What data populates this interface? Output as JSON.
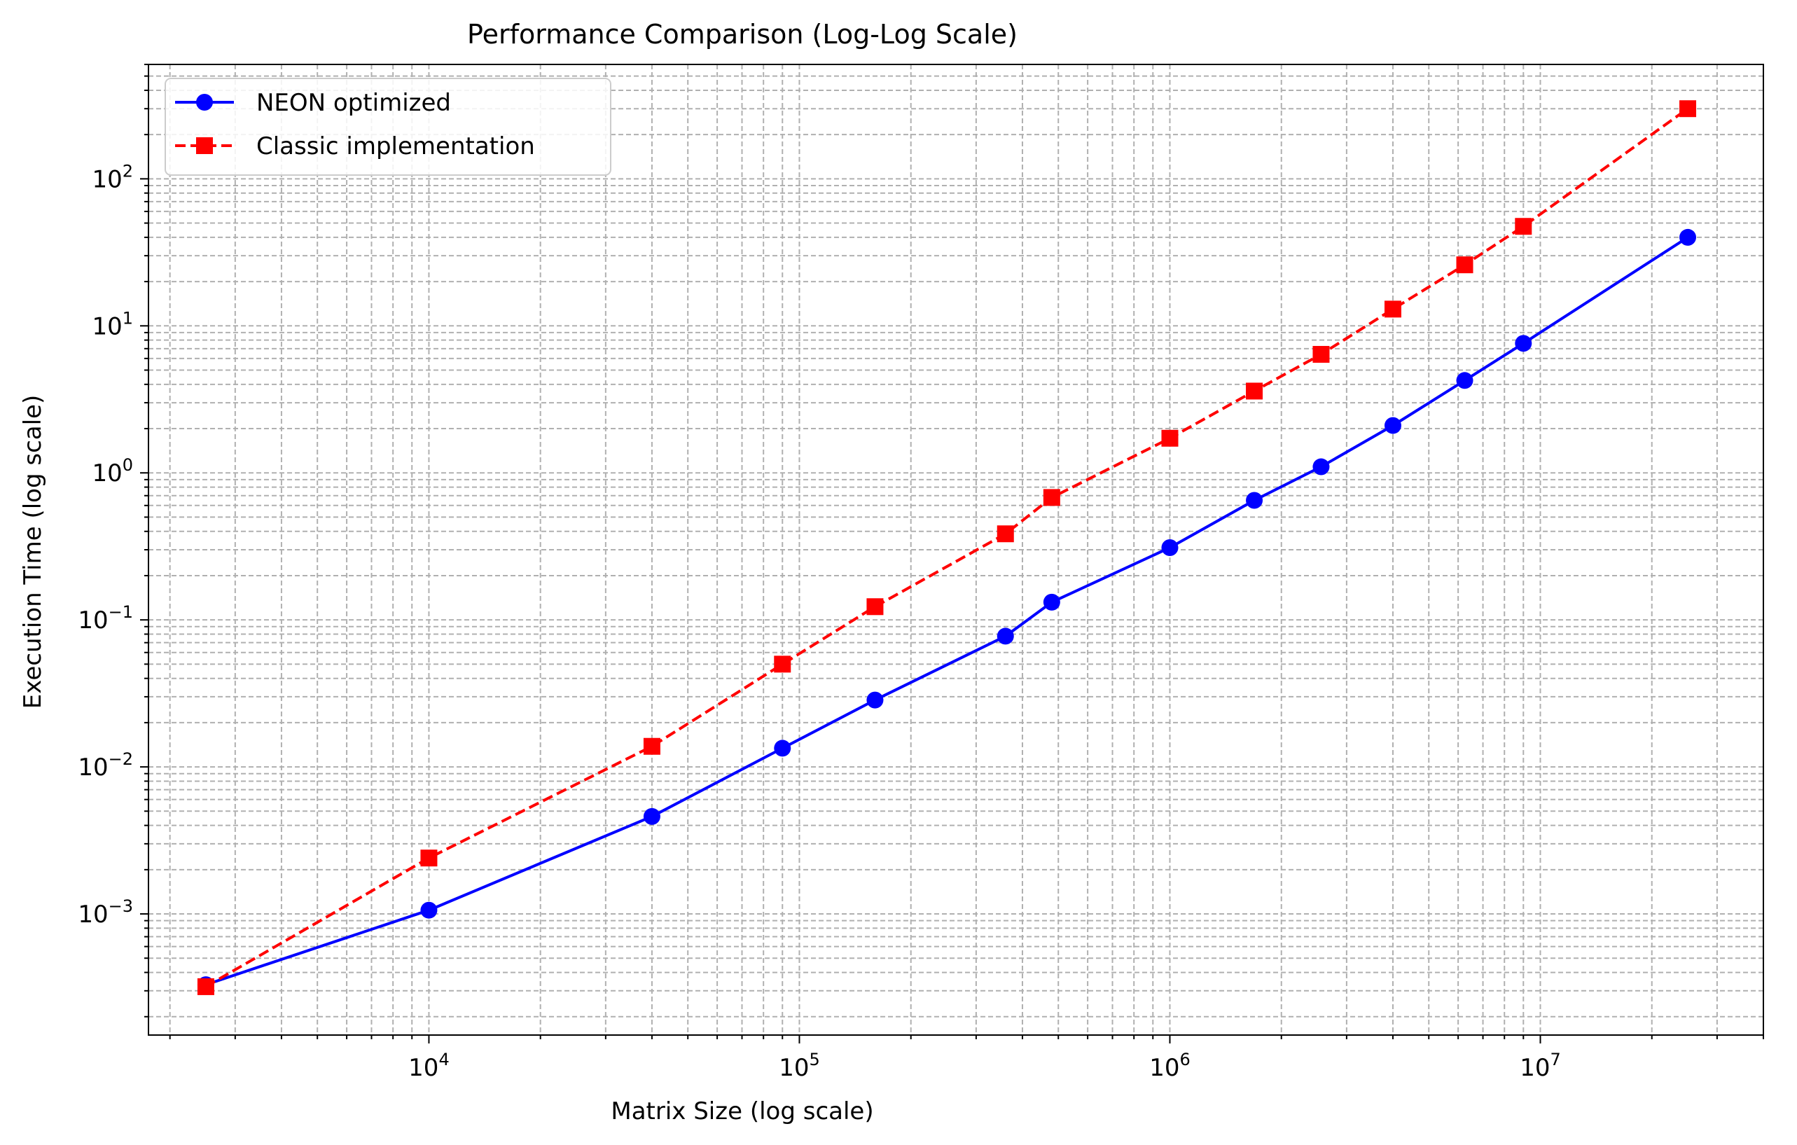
{
  "chart_data": {
    "type": "line",
    "title": "Performance Comparison (Log-Log Scale)",
    "xlabel": "Matrix Size (log scale)",
    "ylabel": "Execution Time (log scale)",
    "xscale": "log",
    "yscale": "log",
    "xlim": [
      1750,
      40000000
    ],
    "ylim": [
      0.00015,
      600
    ],
    "grid": "both major and minor, dashed",
    "legend_position": "top-left",
    "x_ticks": [
      {
        "value": 10000,
        "base": "10",
        "exp": "4"
      },
      {
        "value": 100000,
        "base": "10",
        "exp": "5"
      },
      {
        "value": 1000000,
        "base": "10",
        "exp": "6"
      },
      {
        "value": 10000000,
        "base": "10",
        "exp": "7"
      }
    ],
    "y_ticks": [
      {
        "value": 0.001,
        "base": "10",
        "exp": "−3"
      },
      {
        "value": 0.01,
        "base": "10",
        "exp": "−2"
      },
      {
        "value": 0.1,
        "base": "10",
        "exp": "−1"
      },
      {
        "value": 1,
        "base": "10",
        "exp": "0"
      },
      {
        "value": 10,
        "base": "10",
        "exp": "1"
      },
      {
        "value": 100,
        "base": "10",
        "exp": "2"
      }
    ],
    "x": [
      2500,
      10000,
      40000,
      90000,
      160000,
      360000,
      480000,
      1000000,
      1690000,
      2560000,
      4000000,
      6250000,
      9000000,
      25000000
    ],
    "series": [
      {
        "name": "NEON optimized",
        "color": "#0000ff",
        "line_style": "solid",
        "marker": "circle",
        "values": [
          0.00033,
          0.00106,
          0.0046,
          0.0134,
          0.0285,
          0.0775,
          0.132,
          0.31,
          0.65,
          1.1,
          2.1,
          4.25,
          7.6,
          40
        ]
      },
      {
        "name": "Classic implementation",
        "color": "#ff0000",
        "line_style": "dashed",
        "marker": "square",
        "values": [
          0.00032,
          0.0024,
          0.0138,
          0.05,
          0.123,
          0.385,
          0.68,
          1.72,
          3.6,
          6.4,
          13,
          26,
          47.5,
          300
        ]
      }
    ]
  }
}
